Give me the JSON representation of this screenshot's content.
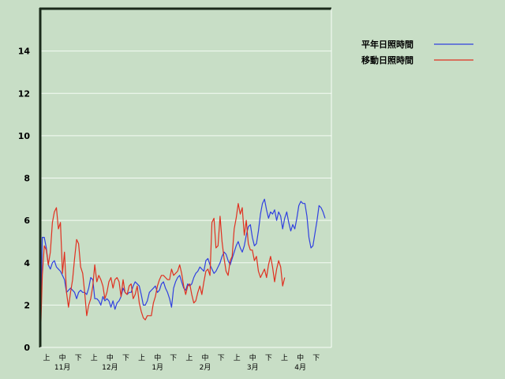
{
  "chart_data": {
    "type": "line",
    "ylim": [
      0,
      16
    ],
    "y_ticks": [
      0,
      2,
      4,
      6,
      8,
      10,
      12,
      14
    ],
    "grid": true,
    "legend_position": "top-right",
    "x_period_labels": [
      "上",
      "中",
      "下",
      "上",
      "中",
      "下",
      "上",
      "中",
      "下",
      "上",
      "中",
      "下",
      "上",
      "中",
      "下",
      "上",
      "中",
      "下"
    ],
    "x_month_labels": [
      "11月",
      "12月",
      "1月",
      "2月",
      "3月",
      "4月"
    ],
    "series": [
      {
        "name": "平年日照時間",
        "color": "#3040e0",
        "values": [
          0,
          5.2,
          5.2,
          4.7,
          3.9,
          3.7,
          4.0,
          4.1,
          3.8,
          3.7,
          3.6,
          3.4,
          3.2,
          2.6,
          2.7,
          2.8,
          2.7,
          2.6,
          2.3,
          2.6,
          2.7,
          2.6,
          2.6,
          2.5,
          2.8,
          3.3,
          3.2,
          2.3,
          2.3,
          2.2,
          2.0,
          2.4,
          2.2,
          2.3,
          2.2,
          1.9,
          2.2,
          1.8,
          2.1,
          2.2,
          2.4,
          2.8,
          2.6,
          2.5,
          2.6,
          2.6,
          2.9,
          3.1,
          3.0,
          2.9,
          2.5,
          2.0,
          2.0,
          2.2,
          2.6,
          2.7,
          2.8,
          2.9,
          2.6,
          2.7,
          3.0,
          3.1,
          2.8,
          2.6,
          2.3,
          1.9,
          2.8,
          3.1,
          3.3,
          3.4,
          3.1,
          2.8,
          2.7,
          3.0,
          2.9,
          3.0,
          3.3,
          3.5,
          3.6,
          3.8,
          3.7,
          3.6,
          4.1,
          4.2,
          3.9,
          3.7,
          3.5,
          3.6,
          3.8,
          4.0,
          4.3,
          4.5,
          4.4,
          4.1,
          3.9,
          4.2,
          4.5,
          4.8,
          5.0,
          4.7,
          4.5,
          4.8,
          5.3,
          5.7,
          5.8,
          5.2,
          4.8,
          4.9,
          5.5,
          6.3,
          6.8,
          7.0,
          6.5,
          6.1,
          6.4,
          6.3,
          6.5,
          6.0,
          6.4,
          6.2,
          5.6,
          6.1,
          6.4,
          5.9,
          5.5,
          5.8,
          5.6,
          6.1,
          6.7,
          6.9,
          6.8,
          6.8,
          6.2,
          5.2,
          4.7,
          4.8,
          5.4,
          6.0,
          6.7,
          6.6,
          6.4,
          6.1
        ]
      },
      {
        "name": "移動日照時間",
        "color": "#e03020",
        "values": [
          0,
          3.4,
          4.8,
          4.6,
          3.9,
          4.5,
          5.9,
          6.4,
          6.6,
          5.6,
          5.9,
          3.5,
          4.5,
          2.6,
          1.9,
          2.6,
          3.2,
          4.2,
          5.1,
          4.9,
          3.8,
          3.5,
          2.6,
          1.5,
          2.0,
          2.3,
          2.9,
          3.9,
          3.1,
          3.4,
          3.2,
          2.9,
          2.3,
          2.6,
          3.1,
          3.3,
          2.8,
          3.2,
          3.3,
          3.1,
          2.4,
          3.2,
          2.6,
          2.5,
          2.9,
          3.0,
          2.3,
          2.5,
          2.9,
          2.1,
          1.7,
          1.4,
          1.3,
          1.5,
          1.5,
          1.5,
          2.1,
          2.4,
          2.9,
          3.2,
          3.4,
          3.4,
          3.3,
          3.2,
          3.2,
          3.7,
          3.4,
          3.5,
          3.6,
          3.9,
          3.5,
          2.9,
          2.5,
          2.9,
          3.0,
          2.5,
          2.1,
          2.2,
          2.6,
          2.9,
          2.5,
          3.1,
          3.6,
          3.7,
          3.4,
          5.9,
          6.1,
          4.7,
          4.8,
          6.2,
          5.0,
          4.2,
          3.6,
          3.4,
          4.1,
          4.3,
          5.6,
          6.1,
          6.8,
          6.3,
          6.6,
          5.3,
          6.0,
          4.9,
          4.6,
          4.6,
          4.1,
          4.3,
          3.6,
          3.3,
          3.5,
          3.7,
          3.3,
          3.9,
          4.3,
          3.8,
          3.1,
          3.7,
          4.1,
          3.8,
          2.9,
          3.3,
          null,
          null,
          null,
          null,
          null,
          null,
          null,
          null,
          null,
          null,
          null,
          null,
          null,
          null,
          null,
          null,
          null,
          null,
          null
        ]
      }
    ]
  }
}
